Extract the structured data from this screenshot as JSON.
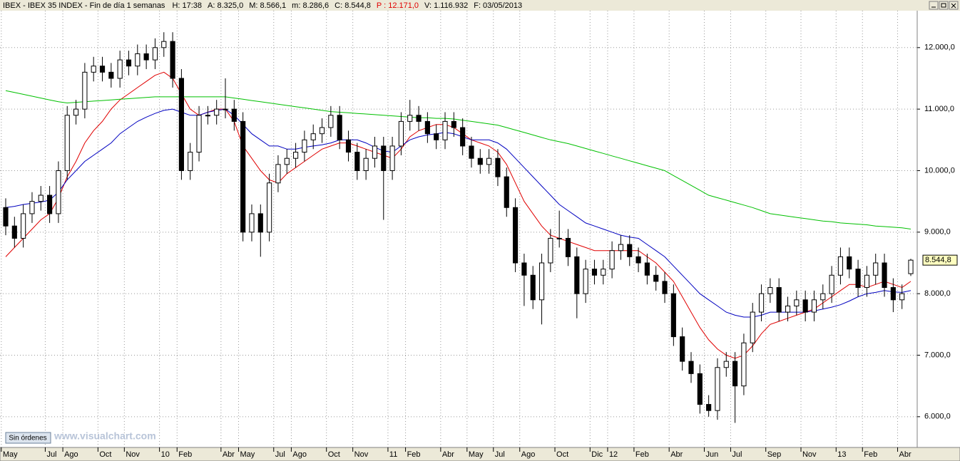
{
  "chart_data": {
    "type": "candlestick",
    "title": "IBEX - IBEX 35 INDEX - Fin de día 1 semanas",
    "info": [
      {
        "text": "H: 17:38",
        "color": "#000000"
      },
      {
        "text": "A: 8.325,0",
        "color": "#000000"
      },
      {
        "text": "M: 8.566,1",
        "color": "#000000"
      },
      {
        "text": "m: 8.286,6",
        "color": "#000000"
      },
      {
        "text": "C: 8.544,8",
        "color": "#000000"
      },
      {
        "text": "P : 12.171,0",
        "color": "#e00000"
      },
      {
        "text": "V: 1.116.932",
        "color": "#000000"
      },
      {
        "text": "F: 03/05/2013",
        "color": "#000000"
      }
    ],
    "button": "Sin órdenes",
    "watermark": "www.visualchart.com",
    "last_price_label": "8.544,8",
    "categories": [
      "May",
      null,
      null,
      null,
      null,
      "Jul",
      null,
      "Ago",
      null,
      null,
      null,
      "Oct",
      null,
      null,
      "Nov",
      null,
      null,
      null,
      "10",
      null,
      "Feb",
      null,
      null,
      null,
      null,
      "Abr",
      null,
      "May",
      null,
      null,
      null,
      "Jul",
      null,
      "Ago",
      null,
      null,
      null,
      "Oct",
      null,
      null,
      "Nov",
      null,
      null,
      null,
      "11",
      null,
      "Feb",
      null,
      null,
      null,
      "Abr",
      null,
      null,
      "May",
      null,
      null,
      "Jul",
      null,
      null,
      "Ago",
      null,
      null,
      null,
      "Oct",
      null,
      null,
      null,
      "Dic",
      null,
      "12",
      null,
      null,
      "Feb",
      null,
      null,
      null,
      "Abr",
      null,
      null,
      null,
      "Jun",
      null,
      null,
      "Jul",
      null,
      null,
      null,
      "Sep",
      null,
      null,
      null,
      "Nov",
      null,
      null,
      null,
      "13",
      null,
      null,
      "Feb",
      null,
      null,
      null,
      "Abr",
      null
    ],
    "open": [
      9400,
      9100,
      8900,
      9300,
      9500,
      9600,
      9300,
      10000,
      10900,
      11000,
      11600,
      11700,
      11600,
      11500,
      11800,
      11700,
      11900,
      11800,
      12000,
      12100,
      11500,
      10000,
      10300,
      10900,
      10900,
      11000,
      11000,
      10800,
      9000,
      9300,
      9000,
      9800,
      10100,
      10200,
      10300,
      10500,
      10600,
      10700,
      10900,
      10500,
      10300,
      10000,
      10200,
      10400,
      10000,
      10400,
      10800,
      10900,
      10800,
      10600,
      10500,
      10800,
      10700,
      10400,
      10200,
      10100,
      10200,
      9900,
      9400,
      8500,
      8300,
      7900,
      8500,
      8900,
      8900,
      8600,
      8000,
      8400,
      8300,
      8400,
      8700,
      8800,
      8600,
      8500,
      8300,
      8200,
      8000,
      7300,
      6900,
      6700,
      6200,
      6100,
      6800,
      6900,
      6500,
      7200,
      7700,
      8000,
      8100,
      7700,
      7800,
      7900,
      7700,
      7900,
      8000,
      8300,
      8600,
      8400,
      8100,
      8300,
      8500,
      8100,
      7900,
      8325
    ],
    "high": [
      9550,
      9250,
      9450,
      9650,
      9750,
      9750,
      10150,
      11050,
      11150,
      11750,
      11850,
      11850,
      11750,
      11950,
      11950,
      12050,
      12050,
      12150,
      12250,
      12250,
      11650,
      10450,
      11050,
      11050,
      11150,
      11500,
      11150,
      10950,
      9450,
      9450,
      9950,
      10250,
      10350,
      10450,
      10650,
      10750,
      10850,
      11050,
      11050,
      10650,
      10450,
      10350,
      10550,
      10550,
      10550,
      10950,
      11150,
      11050,
      10950,
      10750,
      10950,
      10950,
      10850,
      10550,
      10350,
      10350,
      10350,
      10050,
      9550,
      8650,
      8450,
      8650,
      9050,
      9350,
      9050,
      8750,
      8550,
      8550,
      8550,
      8850,
      8950,
      8950,
      8750,
      8650,
      8450,
      8350,
      8150,
      7450,
      7050,
      6850,
      6350,
      6950,
      7050,
      7050,
      7350,
      7850,
      8150,
      8250,
      8250,
      7950,
      8050,
      8050,
      8050,
      8150,
      8450,
      8750,
      8750,
      8550,
      8450,
      8650,
      8650,
      8250,
      8150,
      8566.1
    ],
    "low": [
      8950,
      8750,
      8750,
      9150,
      9350,
      9150,
      9150,
      9850,
      10750,
      10850,
      11450,
      11450,
      11350,
      11350,
      11550,
      11550,
      11650,
      11650,
      11850,
      11350,
      9850,
      9850,
      10150,
      10750,
      10750,
      10850,
      10650,
      8850,
      8850,
      8600,
      8850,
      9650,
      9950,
      10050,
      10150,
      10350,
      10450,
      10550,
      10350,
      10150,
      9850,
      9850,
      10050,
      9200,
      9850,
      10250,
      10650,
      10650,
      10450,
      10350,
      10350,
      10550,
      10250,
      10050,
      9950,
      9950,
      9750,
      9250,
      8350,
      7800,
      7750,
      7500,
      8350,
      8750,
      8450,
      7600,
      7850,
      8150,
      8150,
      8250,
      8550,
      8450,
      8350,
      8150,
      8050,
      7850,
      7150,
      6750,
      6550,
      6050,
      6000,
      5950,
      6650,
      5900,
      6350,
      7050,
      7550,
      7850,
      7550,
      7550,
      7650,
      7550,
      7550,
      7750,
      7850,
      8150,
      8250,
      7950,
      7950,
      8150,
      7950,
      7700,
      7750,
      8286.6
    ],
    "close": [
      9100,
      8900,
      9300,
      9500,
      9600,
      9300,
      10000,
      10900,
      11000,
      11600,
      11700,
      11600,
      11500,
      11800,
      11700,
      11900,
      11800,
      12000,
      12100,
      11500,
      10000,
      10300,
      10900,
      10900,
      11000,
      11000,
      10800,
      9000,
      9300,
      9000,
      9800,
      10100,
      10200,
      10300,
      10500,
      10600,
      10700,
      10900,
      10500,
      10300,
      10000,
      10200,
      10400,
      10000,
      10400,
      10800,
      10900,
      10800,
      10600,
      10500,
      10800,
      10700,
      10400,
      10200,
      10100,
      10200,
      9900,
      9400,
      8500,
      8300,
      7900,
      8500,
      8900,
      8900,
      8600,
      8000,
      8400,
      8300,
      8400,
      8700,
      8800,
      8600,
      8500,
      8300,
      8200,
      8000,
      7300,
      6900,
      6700,
      6200,
      6100,
      6800,
      6900,
      6500,
      7200,
      7700,
      8000,
      8100,
      7700,
      7800,
      7900,
      7700,
      7900,
      8000,
      8300,
      8600,
      8400,
      8100,
      8300,
      8500,
      8100,
      7900,
      8000,
      8544.8
    ],
    "up_color": "#ffffff",
    "down_color": "#000000",
    "series": [
      {
        "color": "#e00000",
        "values": [
          8600,
          8750,
          8900,
          9050,
          9200,
          9300,
          9550,
          9900,
          10150,
          10450,
          10650,
          10800,
          11000,
          11150,
          11250,
          11350,
          11450,
          11550,
          11600,
          11500,
          11250,
          11000,
          10900,
          10950,
          11000,
          11000,
          10800,
          10400,
          10200,
          10000,
          9850,
          9800,
          9950,
          10050,
          10150,
          10250,
          10350,
          10400,
          10450,
          10450,
          10400,
          10350,
          10300,
          10250,
          10200,
          10350,
          10550,
          10650,
          10700,
          10750,
          10750,
          10700,
          10600,
          10500,
          10450,
          10400,
          10300,
          10100,
          9800,
          9500,
          9300,
          9100,
          8950,
          8900,
          8850,
          8800,
          8750,
          8700,
          8700,
          8700,
          8700,
          8700,
          8700,
          8600,
          8500,
          8350,
          8200,
          7950,
          7700,
          7450,
          7250,
          7100,
          7000,
          6950,
          7000,
          7150,
          7350,
          7500,
          7550,
          7600,
          7650,
          7700,
          7750,
          7850,
          7950,
          8050,
          8150,
          8150,
          8100,
          8150,
          8200,
          8150,
          8100,
          8200
        ]
      },
      {
        "color": "#0000c0",
        "values": [
          9400,
          9420,
          9450,
          9470,
          9490,
          9520,
          9650,
          9850,
          10000,
          10150,
          10250,
          10350,
          10450,
          10600,
          10700,
          10800,
          10870,
          10930,
          10980,
          11000,
          10950,
          10900,
          10900,
          10950,
          10980,
          11000,
          10900,
          10750,
          10600,
          10500,
          10400,
          10400,
          10350,
          10350,
          10380,
          10400,
          10420,
          10450,
          10500,
          10500,
          10500,
          10450,
          10380,
          10320,
          10300,
          10400,
          10500,
          10550,
          10580,
          10600,
          10620,
          10600,
          10550,
          10500,
          10500,
          10500,
          10450,
          10350,
          10200,
          10050,
          9900,
          9750,
          9600,
          9450,
          9350,
          9250,
          9150,
          9100,
          9050,
          9000,
          8950,
          8920,
          8900,
          8800,
          8700,
          8600,
          8450,
          8300,
          8150,
          8000,
          7900,
          7800,
          7700,
          7650,
          7620,
          7620,
          7650,
          7700,
          7700,
          7700,
          7700,
          7700,
          7720,
          7750,
          7780,
          7820,
          7880,
          7950,
          8000,
          8020,
          8050,
          8030,
          8020,
          8050
        ]
      },
      {
        "color": "#00c000",
        "values": [
          11300,
          11270,
          11240,
          11210,
          11180,
          11150,
          11120,
          11100,
          11110,
          11120,
          11130,
          11140,
          11150,
          11160,
          11170,
          11180,
          11190,
          11200,
          11200,
          11200,
          11200,
          11200,
          11200,
          11200,
          11200,
          11200,
          11180,
          11160,
          11140,
          11120,
          11100,
          11080,
          11060,
          11040,
          11020,
          11000,
          10980,
          10960,
          10950,
          10940,
          10930,
          10920,
          10910,
          10900,
          10890,
          10880,
          10870,
          10860,
          10860,
          10850,
          10850,
          10840,
          10820,
          10800,
          10780,
          10760,
          10740,
          10700,
          10660,
          10620,
          10580,
          10540,
          10500,
          10470,
          10440,
          10400,
          10360,
          10320,
          10280,
          10240,
          10200,
          10160,
          10120,
          10080,
          10040,
          10000,
          9920,
          9840,
          9760,
          9680,
          9600,
          9560,
          9520,
          9480,
          9440,
          9400,
          9350,
          9300,
          9280,
          9260,
          9240,
          9220,
          9200,
          9180,
          9170,
          9150,
          9140,
          9130,
          9120,
          9100,
          9090,
          9080,
          9070,
          9050
        ]
      }
    ],
    "ylim": [
      5500,
      12600
    ],
    "yticks": [
      {
        "value": 6000,
        "label": "6.000,0"
      },
      {
        "value": 7000,
        "label": "7.000,0"
      },
      {
        "value": 8000,
        "label": "8.000,0"
      },
      {
        "value": 9000,
        "label": "9.000,0"
      },
      {
        "value": 10000,
        "label": "10.000,0"
      },
      {
        "value": 11000,
        "label": "11.000,0"
      },
      {
        "value": 12000,
        "label": "12.000,0"
      }
    ],
    "grid": true
  }
}
